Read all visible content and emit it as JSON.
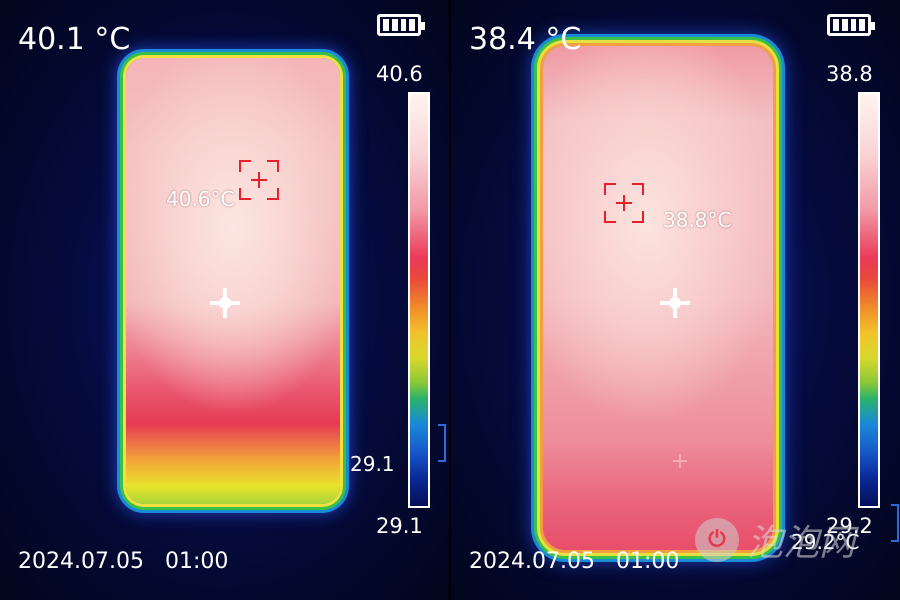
{
  "left": {
    "temp": "40.1 °C",
    "scale_max": "40.6",
    "scale_min": "29.1",
    "range_value": "29.1",
    "spot_label": "40.6°C",
    "timestamp": "2024.07.05   01:00"
  },
  "right": {
    "temp": "38.4 °C",
    "scale_max": "38.8",
    "scale_min": "29.2",
    "range_value": "29.2°C",
    "spot_label": "38.8°C",
    "timestamp": "2024.07.05   01:00"
  },
  "colors": {
    "background": "#050a3a",
    "max_marker": "#e8202a",
    "range_bracket": "#2a6adf"
  },
  "icons": {
    "battery": "battery-full-icon",
    "crosshair": "center-crosshair-icon",
    "max_marker": "max-temp-target-icon",
    "watermark": "pcpop-logo-icon"
  },
  "watermark": {
    "logo_glyph": "⏻",
    "text": "泡泡网"
  }
}
